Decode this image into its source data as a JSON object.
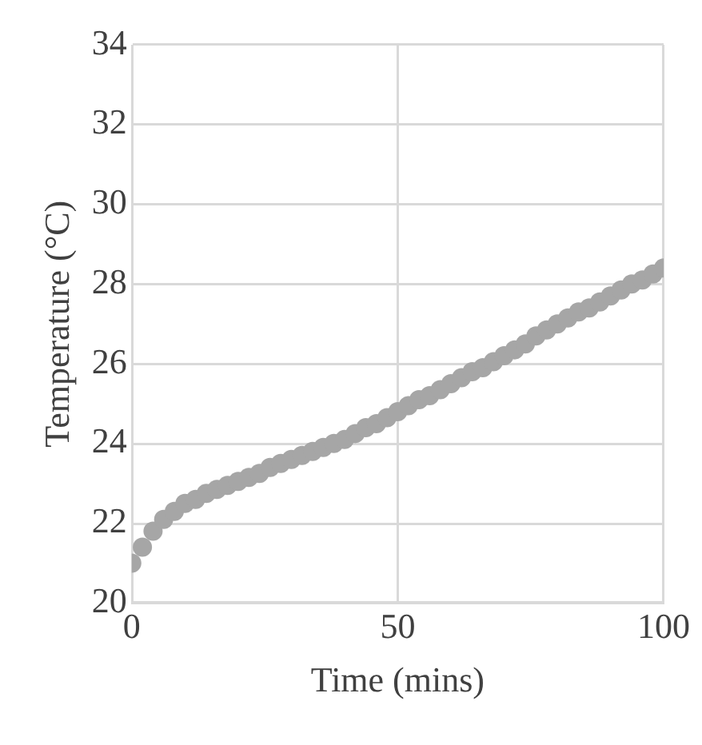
{
  "chart_data": {
    "type": "scatter",
    "xlabel": "Time (mins)",
    "ylabel": "Temperature (°C)",
    "x": [
      0,
      2,
      4,
      6,
      8,
      10,
      12,
      14,
      16,
      18,
      20,
      22,
      24,
      26,
      28,
      30,
      32,
      34,
      36,
      38,
      40,
      42,
      44,
      46,
      48,
      50,
      52,
      54,
      56,
      58,
      60,
      62,
      64,
      66,
      68,
      70,
      72,
      74,
      76,
      78,
      80,
      82,
      84,
      86,
      88,
      90,
      92,
      94,
      96,
      98,
      100
    ],
    "series": [
      {
        "color": "#a6a6a6",
        "values": [
          21.0,
          21.4,
          21.8,
          22.1,
          22.3,
          22.5,
          22.6,
          22.75,
          22.85,
          22.95,
          23.05,
          23.15,
          23.25,
          23.4,
          23.5,
          23.6,
          23.7,
          23.8,
          23.9,
          24.0,
          24.1,
          24.25,
          24.4,
          24.5,
          24.65,
          24.8,
          24.95,
          25.1,
          25.2,
          25.35,
          25.5,
          25.65,
          25.8,
          25.9,
          26.05,
          26.2,
          26.35,
          26.5,
          26.7,
          26.85,
          27.0,
          27.15,
          27.3,
          27.4,
          27.55,
          27.7,
          27.85,
          28.0,
          28.1,
          28.25,
          28.4
        ]
      }
    ],
    "xlim": [
      0,
      100
    ],
    "xticks": [
      0,
      50,
      100
    ],
    "ylim": [
      20,
      34
    ],
    "yticks": [
      20,
      22,
      24,
      26,
      28,
      30,
      32,
      34
    ],
    "grid": true,
    "legend": false,
    "marker": "circle"
  }
}
